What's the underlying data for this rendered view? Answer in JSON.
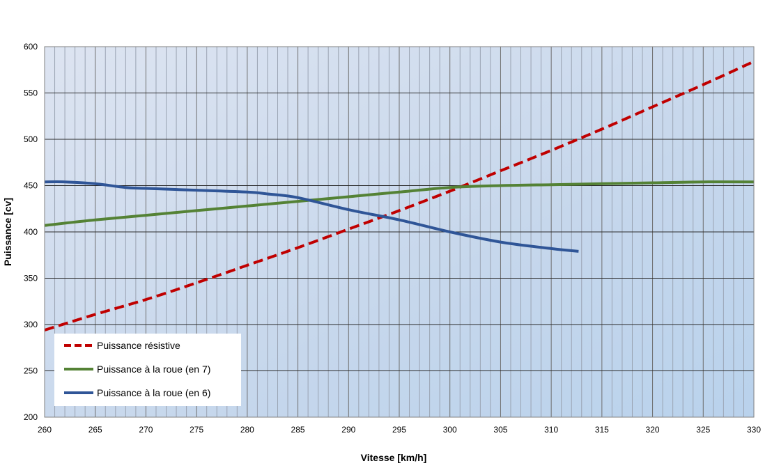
{
  "chart_data": {
    "type": "line",
    "title": "",
    "xlabel": "Vitesse [km/h]",
    "ylabel": "Puissance [cv]",
    "xlim": [
      260,
      330
    ],
    "ylim": [
      200,
      600
    ],
    "x_ticks": [
      260,
      265,
      270,
      275,
      280,
      285,
      290,
      295,
      300,
      305,
      310,
      315,
      320,
      325,
      330
    ],
    "y_ticks": [
      200,
      250,
      300,
      350,
      400,
      450,
      500,
      550,
      600
    ],
    "x_minor_step": 1,
    "grid": true,
    "legend_position": "bottom-left",
    "series": [
      {
        "name": "Puissance résistive",
        "color": "#c00000",
        "dash": true,
        "x": [
          260,
          265,
          270,
          275,
          280,
          285,
          290,
          295,
          300,
          305,
          310,
          315,
          320,
          325,
          330
        ],
        "y": [
          294,
          311,
          327,
          345,
          364,
          383,
          403,
          423,
          444,
          466,
          488,
          511,
          535,
          559,
          584
        ]
      },
      {
        "name": "Puissance à la roue (en 7)",
        "color": "#548235",
        "dash": false,
        "x": [
          260,
          265,
          270,
          275,
          280,
          285,
          290,
          295,
          300,
          305,
          310,
          315,
          320,
          325,
          330
        ],
        "y": [
          407,
          413,
          418,
          423,
          428,
          433,
          438,
          443,
          448,
          450,
          451,
          452,
          453,
          454,
          454
        ]
      },
      {
        "name": "Puissance à la roue (en 6)",
        "color": "#2f5597",
        "dash": false,
        "x": [
          260,
          262,
          265,
          268,
          270,
          275,
          280,
          282,
          285,
          290,
          295,
          300,
          305,
          310,
          312.7
        ],
        "y": [
          454,
          454,
          452,
          448,
          447,
          445,
          443,
          441,
          437,
          424,
          413,
          400,
          389,
          382,
          379
        ]
      }
    ]
  }
}
